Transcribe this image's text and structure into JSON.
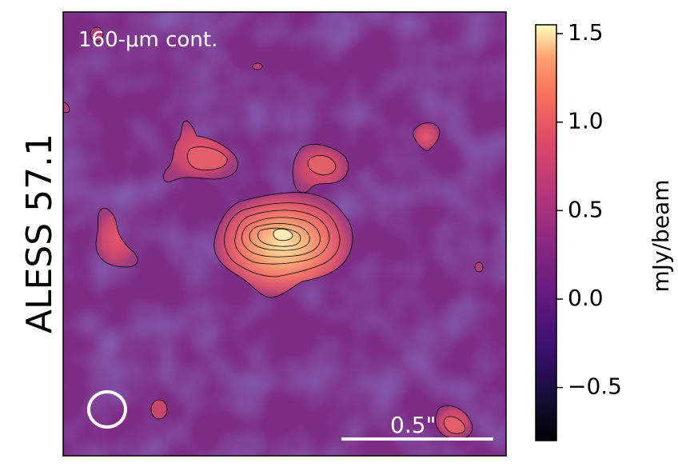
{
  "chart_data": {
    "type": "heatmap",
    "title": "",
    "object_label": "ALESS 57.1",
    "panel_label": "160-μm cont.",
    "scale_bar_label": "0.5\"",
    "colormap": "magma",
    "colorbar": {
      "label": "mJy/beam",
      "range": [
        -0.8,
        1.55
      ],
      "ticks": [
        {
          "value": 1.5,
          "label": "1.5"
        },
        {
          "value": 1.0,
          "label": "1.0"
        },
        {
          "value": 0.5,
          "label": "0.5"
        },
        {
          "value": 0.0,
          "label": "0.0"
        },
        {
          "value": -0.5,
          "label": "−0.5"
        }
      ]
    },
    "source_peak_mjy_per_beam": 1.3,
    "contour_count_on_main_source": 7,
    "has_beam_ellipse": true
  },
  "colors": {
    "background_low": "#3b1a6e",
    "background_mid": "#7b2f82",
    "source_mid": "#e3596a",
    "source_peak": "#fde6ab",
    "annotation": "#ffffff"
  }
}
